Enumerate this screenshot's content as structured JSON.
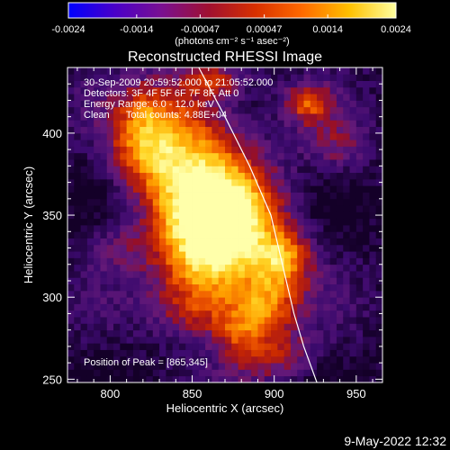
{
  "chart_data": {
    "type": "heatmap",
    "title": "Reconstructed RHESSI Image",
    "xlabel": "Heliocentric X (arcsec)",
    "ylabel": "Heliocentric Y (arcsec)",
    "xlim": [
      774,
      966
    ],
    "ylim": [
      248,
      440
    ],
    "xticks": [
      800,
      850,
      900,
      950
    ],
    "yticks": [
      250,
      300,
      350,
      400
    ],
    "colorbar": {
      "ticks": [
        "-0.0024",
        "-0.0014",
        "-0.00047",
        "0.00047",
        "0.0014",
        "0.0024"
      ],
      "unit_label": "(photons cm⁻² s⁻¹ asec⁻²)",
      "range": [
        -0.0024,
        0.0024
      ],
      "colors": [
        "#0000ff",
        "#4a00c8",
        "#7a1090",
        "#a01030",
        "#d83000",
        "#ff6a00",
        "#ffc000",
        "#ffffa0"
      ]
    },
    "peak": {
      "x": 865,
      "y": 345
    },
    "annotations": [
      "30-Sep-2009 20:59:52.000 to 21:05:52.000",
      "Detectors: 3F 4F 5F 6F 7F 8F, Att 0",
      "Energy Range: 6.0 - 12.0 keV",
      "Clean      Total counts: 4.88E+04",
      "Position of Peak = [865,345]"
    ],
    "limb_curve": [
      [
        854,
        440
      ],
      [
        870,
        410
      ],
      [
        885,
        380
      ],
      [
        898,
        350
      ],
      [
        905,
        320
      ],
      [
        912,
        290
      ],
      [
        918,
        270
      ],
      [
        926,
        248
      ]
    ],
    "sources": [
      {
        "x": 866,
        "y": 346,
        "sx": 26,
        "sy": 24,
        "a": 1.15
      },
      {
        "x": 845,
        "y": 392,
        "sx": 24,
        "sy": 28,
        "a": 0.6
      },
      {
        "x": 822,
        "y": 408,
        "sx": 14,
        "sy": 14,
        "a": 0.35
      },
      {
        "x": 820,
        "y": 385,
        "sx": 14,
        "sy": 12,
        "a": 0.3
      },
      {
        "x": 860,
        "y": 312,
        "sx": 20,
        "sy": 16,
        "a": 0.4
      },
      {
        "x": 905,
        "y": 323,
        "sx": 12,
        "sy": 12,
        "a": 0.55
      },
      {
        "x": 895,
        "y": 296,
        "sx": 14,
        "sy": 12,
        "a": 0.5
      },
      {
        "x": 850,
        "y": 290,
        "sx": 16,
        "sy": 12,
        "a": 0.3
      },
      {
        "x": 878,
        "y": 280,
        "sx": 12,
        "sy": 12,
        "a": 0.4
      },
      {
        "x": 900,
        "y": 265,
        "sx": 18,
        "sy": 12,
        "a": 0.35
      },
      {
        "x": 862,
        "y": 432,
        "sx": 14,
        "sy": 8,
        "a": 0.4
      },
      {
        "x": 920,
        "y": 418,
        "sx": 10,
        "sy": 8,
        "a": 0.45
      },
      {
        "x": 938,
        "y": 392,
        "sx": 14,
        "sy": 12,
        "a": 0.25
      },
      {
        "x": 800,
        "y": 330,
        "sx": 12,
        "sy": 10,
        "a": 0.2
      }
    ]
  },
  "footer": {
    "timestamp": "9-May-2022 12:32"
  }
}
